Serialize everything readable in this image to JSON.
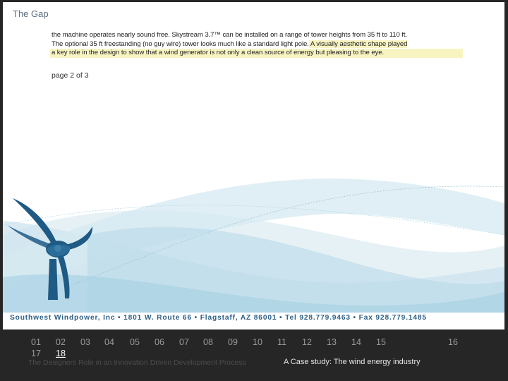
{
  "slide": {
    "title": "The Gap",
    "doc_lines": [
      {
        "text": "the machine operates nearly sound free. Skystream 3.7™ can be installed on a range of tower heights from 35 ft to 110 ft.",
        "highlight": false
      },
      {
        "text": "The optional 35 ft freestanding (no guy wire) tower looks much like a standard light pole.",
        "highlight_tail": " A visually aesthetic shape played"
      },
      {
        "text": "a key role in the design to show that a wind generator is not only a clean source of energy but pleasing to the eye.",
        "highlight": true
      }
    ],
    "page_label": "page 2 of 3",
    "address": "Southwest Windpower, Inc • 1801 W. Route 66 • Flagstaff, AZ 86001 • Tel 928.779.9463 • Fax 928.779.1485"
  },
  "nav": {
    "items": [
      "01",
      "02",
      "03",
      "04",
      "05",
      "06",
      "07",
      "08",
      "09",
      "10",
      "11",
      "12",
      "13",
      "14",
      "15",
      "16",
      "17",
      "18"
    ],
    "current": "18"
  },
  "footer": {
    "left": "The Designers Role in an Innovation Driven Development Process",
    "right": "A Case study: The wind energy industry"
  },
  "colors": {
    "wave_light": "#dcebf2",
    "wave_mid": "#b4d7e6",
    "turbine": "#1f5a85",
    "address": "#2e5f86"
  }
}
